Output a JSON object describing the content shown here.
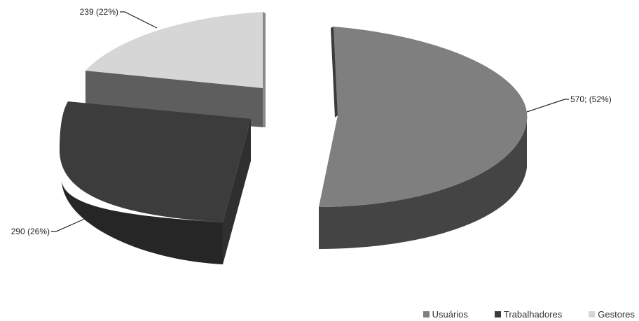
{
  "chart_data": {
    "type": "pie",
    "style": "3d-exploded",
    "legend_position": "bottom-right",
    "slices": [
      {
        "name": "Usuários",
        "value": 570,
        "label": "570; (52%)",
        "color": "#7f7f7f",
        "side": "#4d4d4d"
      },
      {
        "name": "Trabalhadores",
        "value": 290,
        "label": "290 (26%)",
        "color": "#3c3c3c",
        "side": "#262626"
      },
      {
        "name": "Gestores",
        "value": 239,
        "label": "239 (22%)",
        "color": "#d6d6d6",
        "side": "#5e5e5e"
      }
    ]
  }
}
